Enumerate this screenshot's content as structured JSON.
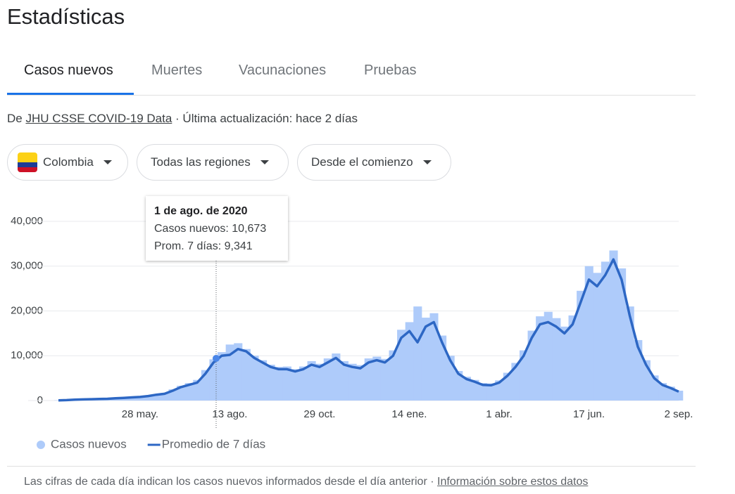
{
  "header": {
    "title": "Estadísticas"
  },
  "tabs": [
    "Casos nuevos",
    "Muertes",
    "Vacunaciones",
    "Pruebas"
  ],
  "source": {
    "prefix": "De",
    "link": "JHU CSSE COVID-19 Data",
    "suffix": "· Última actualización: hace 2 días"
  },
  "filters": [
    "Colombia",
    "Todas las regiones",
    "Desde el comienzo"
  ],
  "tooltip": {
    "title": "1 de ago. de 2020",
    "lines": [
      "Casos nuevos: 10,673",
      "Prom. 7 días: 9,341"
    ]
  },
  "chart_data": {
    "type": "combo",
    "categories": [
      null,
      null,
      null,
      null,
      null,
      null,
      null,
      null,
      null,
      null,
      "28 may.",
      null,
      null,
      null,
      null,
      null,
      null,
      null,
      null,
      null,
      null,
      "13 ago.",
      null,
      null,
      null,
      null,
      null,
      null,
      null,
      null,
      null,
      null,
      "29 oct.",
      null,
      null,
      null,
      null,
      null,
      null,
      null,
      null,
      null,
      null,
      "14 ene.",
      null,
      null,
      null,
      null,
      null,
      null,
      null,
      null,
      null,
      null,
      "1 abr.",
      null,
      null,
      null,
      null,
      null,
      null,
      null,
      null,
      null,
      null,
      "17 jun.",
      null,
      null,
      null,
      null,
      null,
      null,
      null,
      null,
      null,
      null,
      "2 sep."
    ],
    "series": [
      {
        "name": "Casos nuevos",
        "type": "bar",
        "color": "#aecbfa",
        "values": [
          60,
          120,
          220,
          280,
          330,
          380,
          450,
          550,
          650,
          750,
          900,
          1100,
          1400,
          1700,
          2500,
          3300,
          3900,
          4600,
          6800,
          9200,
          10800,
          12500,
          12800,
          11500,
          10000,
          9000,
          8000,
          7500,
          7600,
          7000,
          7600,
          8800,
          8200,
          9400,
          10500,
          8800,
          8200,
          7900,
          9400,
          9800,
          9300,
          11200,
          15800,
          17500,
          21000,
          18500,
          19500,
          14500,
          10000,
          6600,
          5300,
          4600,
          3900,
          3800,
          4500,
          6200,
          8400,
          11200,
          15600,
          18800,
          19800,
          18400,
          16500,
          19000,
          24500,
          30000,
          28500,
          31000,
          33500,
          29500,
          21000,
          13500,
          9000,
          5600,
          3900,
          3100,
          2200
        ]
      },
      {
        "name": "Promedio de 7 días",
        "type": "line",
        "color": "#2d67c4",
        "values": [
          50,
          100,
          200,
          250,
          300,
          350,
          400,
          500,
          600,
          700,
          800,
          1000,
          1300,
          1500,
          2200,
          3000,
          3500,
          4000,
          6000,
          8500,
          10000,
          10200,
          11500,
          11000,
          9500,
          8500,
          7500,
          7000,
          7000,
          6500,
          7000,
          8000,
          7500,
          8500,
          9500,
          8000,
          7500,
          7200,
          8500,
          9000,
          8500,
          10000,
          14000,
          15500,
          13000,
          16500,
          17500,
          13000,
          9000,
          6000,
          4800,
          4200,
          3500,
          3400,
          4000,
          5500,
          7500,
          10000,
          14000,
          17000,
          17500,
          16500,
          15000,
          17000,
          22000,
          27000,
          25500,
          28000,
          31500,
          27000,
          19000,
          12000,
          8000,
          5000,
          3500,
          2800,
          2000
        ]
      }
    ],
    "ylim": [
      0,
      40000
    ],
    "yticks": [
      0,
      {
        "value": 10000,
        "label": "10,000"
      },
      {
        "value": 20000,
        "label": "20,000"
      },
      {
        "value": 30000,
        "label": "30,000"
      },
      {
        "value": 40000,
        "label": "40,000"
      }
    ],
    "grid": true
  },
  "footer": {
    "note": "Las cifras de cada día indican los casos nuevos informados desde el día anterior  ·",
    "link": "Información sobre estos datos"
  }
}
